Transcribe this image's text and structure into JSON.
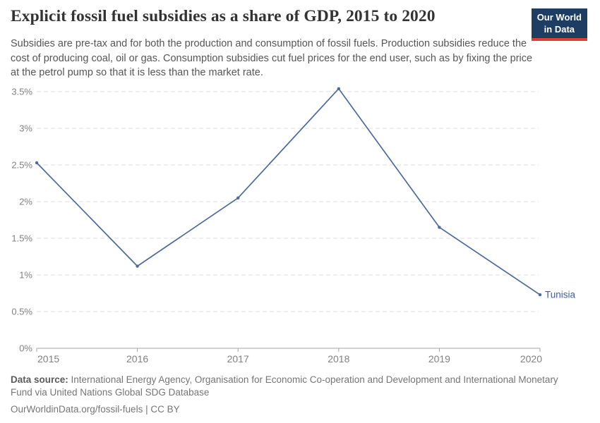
{
  "header": {
    "title": "Explicit fossil fuel subsidies as a share of GDP, 2015 to 2020",
    "subtitle": "Subsidies are pre-tax and for both the production and consumption of fossil fuels. Production subsidies reduce the cost of producing coal, oil or gas. Consumption subsidies cut fuel prices for the end user, such as by fixing the price at the petrol pump so that it is less than the market rate.",
    "logo": {
      "line1": "Our World",
      "line2": "in Data",
      "background_color": "#1d3d63",
      "accent_color": "#dc3e32"
    }
  },
  "chart_data": {
    "type": "line",
    "title": "Explicit fossil fuel subsidies as a share of GDP, 2015 to 2020",
    "x": [
      2015,
      2016,
      2017,
      2018,
      2019,
      2020
    ],
    "xtick_labels": [
      "2015",
      "2016",
      "2017",
      "2018",
      "2019",
      "2020"
    ],
    "series": [
      {
        "name": "Tunisia",
        "color": "#4C6A9C",
        "label_color": "#3b5da5",
        "values": [
          2.53,
          1.12,
          2.05,
          3.54,
          1.65,
          0.73
        ]
      }
    ],
    "ylim": [
      0,
      3.5
    ],
    "yticks": [
      0,
      0.5,
      1,
      1.5,
      2,
      2.5,
      3,
      3.5
    ],
    "ytick_labels": [
      "0%",
      "0.5%",
      "1%",
      "1.5%",
      "2%",
      "2.5%",
      "3%",
      "3.5%"
    ],
    "grid": "horizontal-dashed",
    "legend": "line-end-label"
  },
  "footer": {
    "data_source_label": "Data source:",
    "data_source_text": " International Energy Agency, Organisation for Economic Co-operation and Development and International Monetary Fund via United Nations Global SDG Database",
    "citation_link": "OurWorldinData.org/fossil-fuels",
    "citation_suffix": " | CC BY"
  }
}
